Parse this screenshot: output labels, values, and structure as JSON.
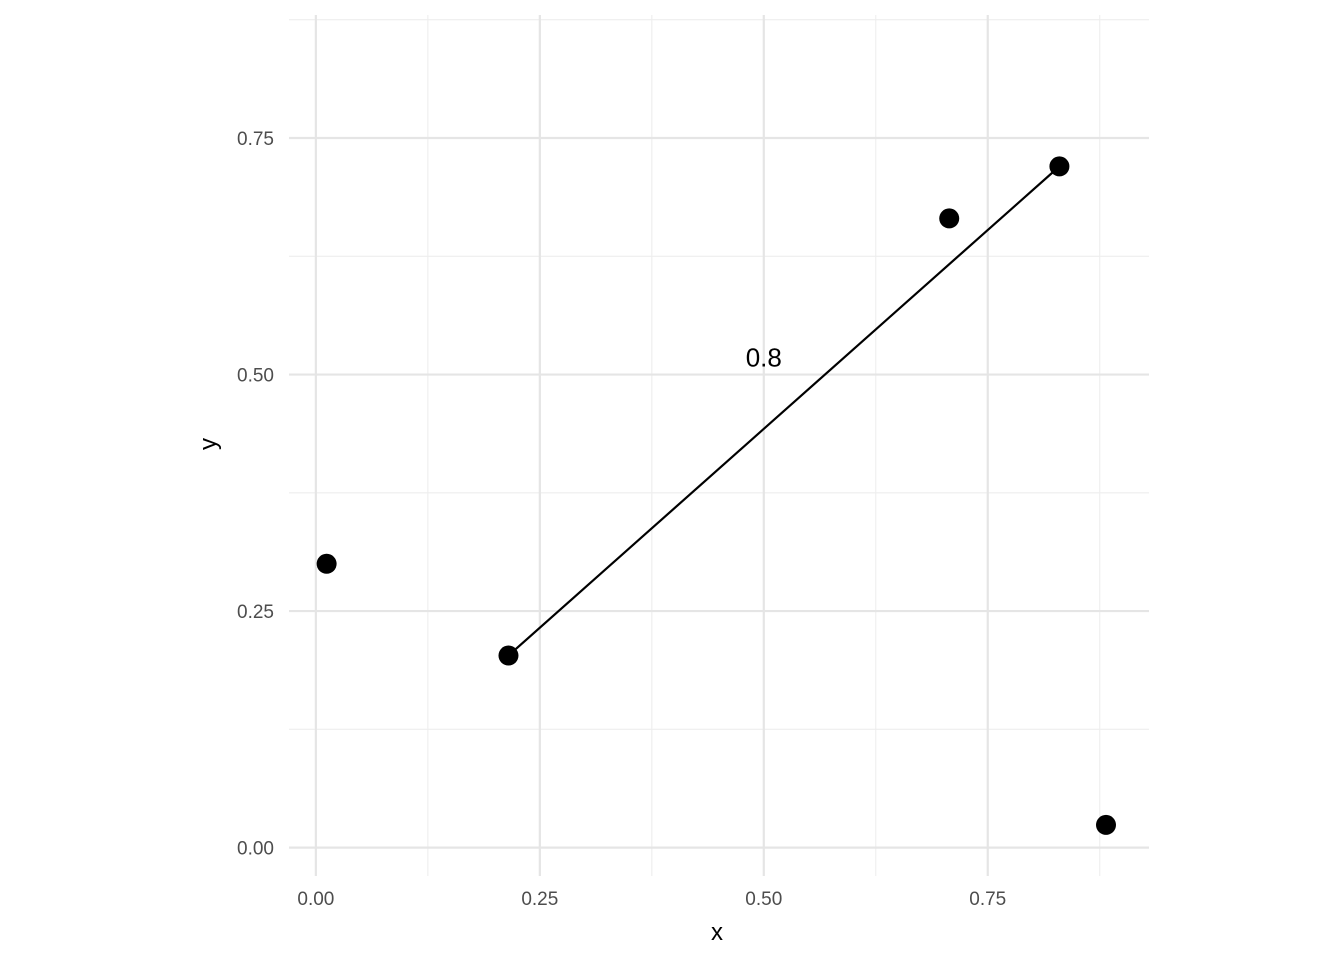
{
  "chart_data": {
    "type": "scatter",
    "xlabel": "x",
    "ylabel": "y",
    "xlim": [
      -0.03,
      0.93
    ],
    "ylim": [
      -0.03,
      0.88
    ],
    "x_ticks": [
      0.0,
      0.25,
      0.5,
      0.75
    ],
    "x_tick_labels": [
      "0.00",
      "0.25",
      "0.50",
      "0.75"
    ],
    "x_minor_ticks": [
      0.125,
      0.375,
      0.625,
      0.875
    ],
    "y_ticks": [
      0.0,
      0.25,
      0.5,
      0.75
    ],
    "y_tick_labels": [
      "0.00",
      "0.25",
      "0.50",
      "0.75"
    ],
    "y_minor_ticks": [
      0.125,
      0.375,
      0.625,
      0.875
    ],
    "grid": true,
    "points": [
      {
        "x": 0.012,
        "y": 0.3
      },
      {
        "x": 0.215,
        "y": 0.203
      },
      {
        "x": 0.707,
        "y": 0.665
      },
      {
        "x": 0.83,
        "y": 0.72
      },
      {
        "x": 0.882,
        "y": 0.024
      }
    ],
    "segment": {
      "x1": 0.215,
      "y1": 0.203,
      "x2": 0.83,
      "y2": 0.72
    },
    "annotation": {
      "text": "0.8",
      "x": 0.5,
      "y": 0.518
    },
    "colors": {
      "points": "#000000",
      "segment": "#000000"
    }
  }
}
